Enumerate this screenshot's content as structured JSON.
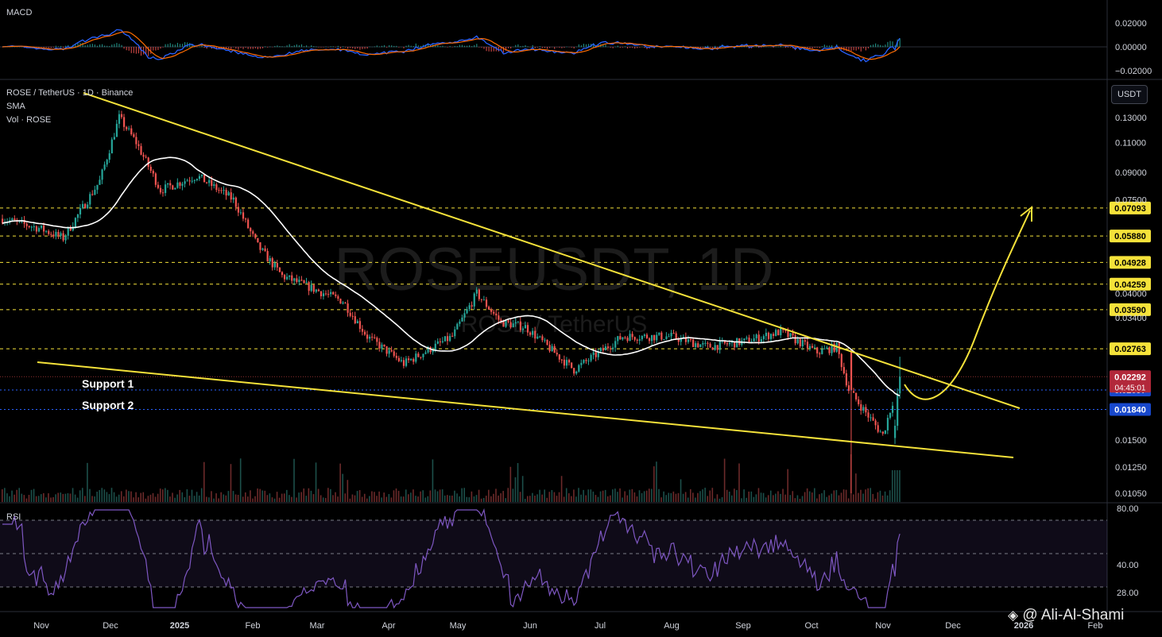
{
  "header": {
    "symbol_line": "ROSE / TetherUS · 1D · Binance",
    "sma_label": "SMA",
    "vol_label": "Vol · ROSE",
    "macd_label": "MACD",
    "rsi_label": "RSI",
    "currency_button": "USDT"
  },
  "watermark": {
    "ticker": "ROSEUSDT, 1D",
    "name": "ROSE / TetherUS",
    "credit": "@ Ali-Al-Shami"
  },
  "annotations": {
    "support1": "Support 1",
    "support2": "Support 2"
  },
  "colors": {
    "up": "#26a69a",
    "down": "#ef5350",
    "trendline": "#f5e23a",
    "sma": "#ffffff",
    "rsi": "#7e57c2",
    "macd": "#2962ff",
    "signal": "#ff6d00",
    "background": "#000000"
  },
  "chart_data": {
    "type": "candlestick",
    "price_axis": {
      "ticks": [
        "0.13000",
        "0.11000",
        "0.09000",
        "0.07500",
        "0.04000",
        "0.03400",
        "0.01500",
        "0.01250",
        "0.01050"
      ],
      "tick_values": [
        0.13,
        0.11,
        0.09,
        0.075,
        0.04,
        0.034,
        0.015,
        0.0125,
        0.0105
      ],
      "scale": "log"
    },
    "resistance_levels": [
      {
        "label": "0.07093",
        "value": 0.07093
      },
      {
        "label": "0.05880",
        "value": 0.0588
      },
      {
        "label": "0.04928",
        "value": 0.04928
      },
      {
        "label": "0.04259",
        "value": 0.04259
      },
      {
        "label": "0.03590",
        "value": 0.0359
      },
      {
        "label": "0.02763",
        "value": 0.02763
      }
    ],
    "current_price": {
      "label": "0.02292",
      "value": 0.02292,
      "countdown": "04:45:01"
    },
    "support_levels": [
      {
        "label": "0.02097",
        "value": 0.02097
      },
      {
        "label": "0.01840",
        "value": 0.0184
      }
    ],
    "x_axis": {
      "labels": [
        "Nov",
        "Dec",
        "2025",
        "Feb",
        "Mar",
        "Apr",
        "May",
        "Jun",
        "Jul",
        "Aug",
        "Sep",
        "Oct",
        "Nov",
        "Dec",
        "2026",
        "Feb"
      ]
    },
    "closes_by_month": [
      {
        "month": "Nov",
        "close": 0.067
      },
      {
        "month": "Dec",
        "close": 0.12
      },
      {
        "month": "2025",
        "close": 0.085
      },
      {
        "month": "Feb",
        "close": 0.06
      },
      {
        "month": "Mar",
        "close": 0.04
      },
      {
        "month": "Apr",
        "close": 0.028
      },
      {
        "month": "May",
        "close": 0.036
      },
      {
        "month": "Jun",
        "close": 0.031
      },
      {
        "month": "Jul",
        "close": 0.029
      },
      {
        "month": "Aug",
        "close": 0.028
      },
      {
        "month": "Sep",
        "close": 0.026
      },
      {
        "month": "Oct",
        "close": 0.021
      },
      {
        "month": "Nov",
        "close": 0.0229
      }
    ],
    "macd_axis": [
      "0.02000",
      "0.00000",
      "−0.02000"
    ],
    "rsi_axis": [
      "80.00",
      "40.00",
      "28.00"
    ],
    "rsi_levels": [
      70,
      50,
      30
    ],
    "projection": "arrow from ~0.021 rising to 0.07093 by late Dec"
  }
}
